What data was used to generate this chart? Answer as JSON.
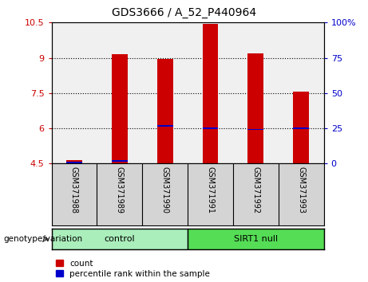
{
  "title": "GDS3666 / A_52_P440964",
  "samples": [
    "GSM371988",
    "GSM371989",
    "GSM371990",
    "GSM371991",
    "GSM371992",
    "GSM371993"
  ],
  "red_bar_heights": [
    4.65,
    9.15,
    8.95,
    10.45,
    9.2,
    7.55
  ],
  "blue_bar_heights": [
    4.55,
    4.6,
    6.1,
    6.0,
    5.95,
    6.0
  ],
  "bar_bottom": 4.5,
  "ylim_left": [
    4.5,
    10.5
  ],
  "ylim_right": [
    0,
    100
  ],
  "yticks_left": [
    4.5,
    6.0,
    7.5,
    9.0,
    10.5
  ],
  "ytick_labels_left": [
    "4.5",
    "6",
    "7.5",
    "9",
    "10.5"
  ],
  "yticks_right": [
    0,
    25,
    50,
    75,
    100
  ],
  "ytick_labels_right": [
    "0",
    "25",
    "50",
    "75",
    "100%"
  ],
  "groups": [
    {
      "label": "control",
      "indices": [
        0,
        1,
        2
      ],
      "color": "#90ee90"
    },
    {
      "label": "SIRT1 null",
      "indices": [
        3,
        4,
        5
      ],
      "color": "#00cc00"
    }
  ],
  "genotype_label": "genotype/variation",
  "legend_red_label": "count",
  "legend_blue_label": "percentile rank within the sample",
  "red_color": "#cc0000",
  "blue_color": "#0000cc",
  "left_tick_color": "#cc0000",
  "right_tick_color": "#0000cc",
  "plot_bg_color": "#f0f0f0",
  "bar_width": 0.35,
  "blue_bar_width": 0.35,
  "blue_bar_thickness": 0.06,
  "grid_lines": [
    6.0,
    7.5,
    9.0
  ],
  "sample_area_color": "#d4d4d4",
  "control_color": "#aaeebb",
  "sirt1_color": "#55dd55"
}
